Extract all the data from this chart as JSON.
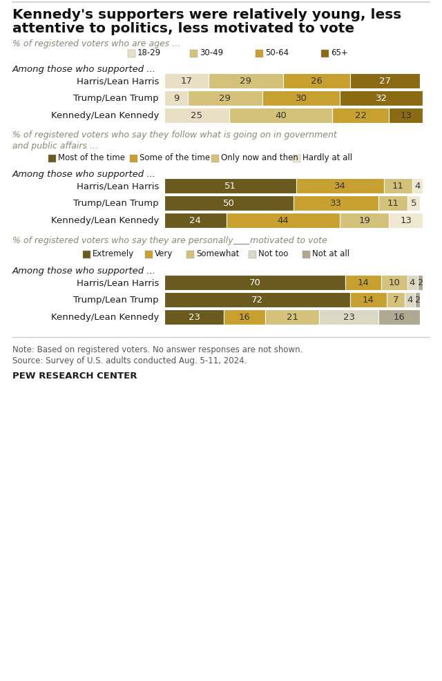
{
  "title_line1": "Kennedy's supporters were relatively young, less",
  "title_line2": "attentive to politics, less motivated to vote",
  "section1": {
    "subtitle": "% of registered voters who are ages ...",
    "legend_labels": [
      "18-29",
      "30-49",
      "50-64",
      "65+"
    ],
    "colors": [
      "#e8dfc5",
      "#d4c27a",
      "#c8a030",
      "#8b6a14"
    ],
    "categories": [
      "Harris/Lean Harris",
      "Trump/Lean Trump",
      "Kennedy/Lean Kennedy"
    ],
    "data": [
      [
        17,
        29,
        26,
        27
      ],
      [
        9,
        29,
        30,
        32
      ],
      [
        25,
        40,
        22,
        13
      ]
    ],
    "text_colors": [
      [
        "#333333",
        "#333333",
        "#333333",
        "white"
      ],
      [
        "#333333",
        "#333333",
        "#333333",
        "white"
      ],
      [
        "#333333",
        "#333333",
        "#333333",
        "#333333"
      ]
    ]
  },
  "section2": {
    "subtitle_line1": "% of registered voters who say they follow what is going on in government",
    "subtitle_line2": "and public affairs ...",
    "legend_labels": [
      "Most of the time",
      "Some of the time",
      "Only now and then",
      "Hardly at all"
    ],
    "colors": [
      "#6b5a1e",
      "#c8a030",
      "#d4c27a",
      "#f0e8d0"
    ],
    "categories": [
      "Harris/Lean Harris",
      "Trump/Lean Trump",
      "Kennedy/Lean Kennedy"
    ],
    "data": [
      [
        51,
        34,
        11,
        4
      ],
      [
        50,
        33,
        11,
        5
      ],
      [
        24,
        44,
        19,
        13
      ]
    ],
    "text_colors": [
      [
        "white",
        "#333333",
        "#333333",
        "#333333"
      ],
      [
        "white",
        "#333333",
        "#333333",
        "#333333"
      ],
      [
        "white",
        "#333333",
        "#333333",
        "#333333"
      ]
    ]
  },
  "section3": {
    "subtitle_part1": "% of registered voters who say they are personally",
    "subtitle_part2": "motivated to vote",
    "legend_labels": [
      "Extremely",
      "Very",
      "Somewhat",
      "Not too",
      "Not at all"
    ],
    "colors": [
      "#6b5a1e",
      "#c8a030",
      "#d4c27a",
      "#ddd8c4",
      "#b0a890"
    ],
    "categories": [
      "Harris/Lean Harris",
      "Trump/Lean Trump",
      "Kennedy/Lean Kennedy"
    ],
    "data": [
      [
        70,
        14,
        10,
        4,
        2
      ],
      [
        72,
        14,
        7,
        4,
        2
      ],
      [
        23,
        16,
        21,
        23,
        16
      ]
    ],
    "text_colors": [
      [
        "white",
        "#333333",
        "#333333",
        "#333333",
        "#333333"
      ],
      [
        "white",
        "#333333",
        "#333333",
        "#333333",
        "#333333"
      ],
      [
        "white",
        "#333333",
        "#333333",
        "#333333",
        "#333333"
      ]
    ]
  },
  "note_line1": "Note: Based on registered voters. No answer responses are not shown.",
  "note_line2": "Source: Survey of U.S. adults conducted Aug. 5-11, 2024.",
  "source": "PEW RESEARCH CENTER",
  "among_label": "Among those who supported ...",
  "bg_color": "#ffffff",
  "dark_text": "#1a1a1a",
  "gray_text": "#888877",
  "title_color": "#111111"
}
